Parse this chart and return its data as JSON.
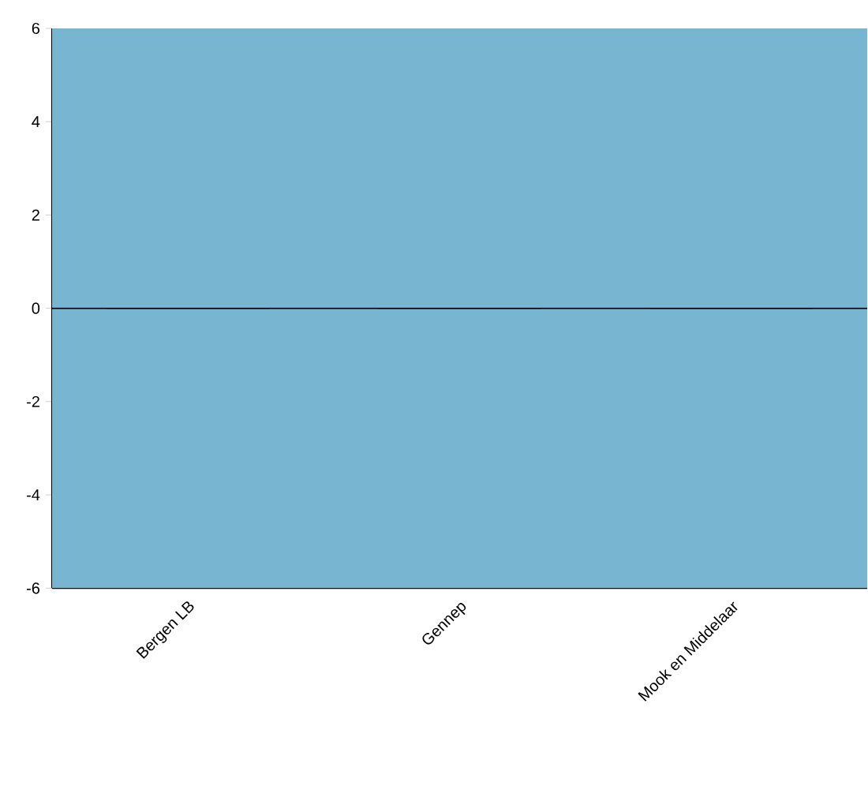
{
  "chart_data": {
    "type": "bar",
    "categories": [
      "Bergen LB",
      "Gennep",
      "Mook en Middelaar"
    ],
    "values": [
      0,
      0,
      0
    ],
    "color": "#000000",
    "ylim": [
      -6,
      6
    ],
    "yticks": [
      -6,
      -4,
      -2,
      0,
      2,
      4,
      6
    ],
    "bands": [
      {
        "axis": "y",
        "from": -6,
        "to": 6,
        "color": "#77b5d1"
      }
    ],
    "ref_lines": [
      {
        "axis": "y",
        "value": 0,
        "color": "#000000"
      }
    ]
  }
}
